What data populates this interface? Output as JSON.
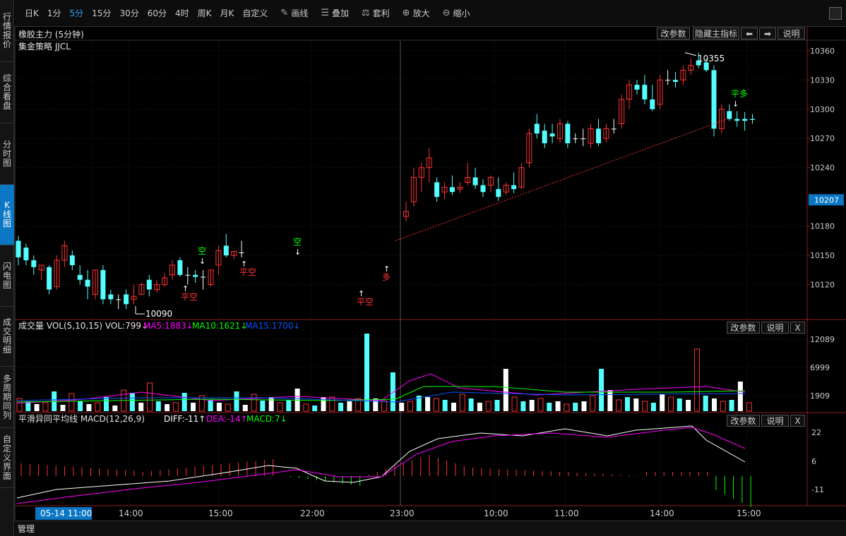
{
  "sidebar": {
    "items": [
      {
        "label": "行情报价",
        "active": false
      },
      {
        "label": "综合看盘",
        "active": false
      },
      {
        "label": "分时图",
        "active": false
      },
      {
        "label": "K线图",
        "active": true
      },
      {
        "label": "闪电图",
        "active": false
      },
      {
        "label": "成交明细",
        "active": false
      },
      {
        "label": "多周期同列",
        "active": false
      },
      {
        "label": "自定义界面",
        "active": false
      }
    ]
  },
  "toolbar": {
    "periods": [
      "日K",
      "1分",
      "5分",
      "15分",
      "30分",
      "60分",
      "4时",
      "周K",
      "月K",
      "自定义"
    ],
    "active_period": "5分",
    "tools": [
      {
        "label": "画线",
        "icon": "pencil-icon",
        "glyph": "✎"
      },
      {
        "label": "叠加",
        "icon": "stack-icon",
        "glyph": "☰"
      },
      {
        "label": "套利",
        "icon": "arbitrage-icon",
        "glyph": "⚖"
      },
      {
        "label": "放大",
        "icon": "zoom-in-icon",
        "glyph": "⊕"
      },
      {
        "label": "缩小",
        "icon": "zoom-out-icon",
        "glyph": "⊖"
      }
    ]
  },
  "main_panel": {
    "title": "橡胶主力 (5分钟)",
    "strategy": "集金策略 JJCL",
    "buttons": {
      "params": "改参数",
      "hide": "隐藏主指标",
      "left": "⬅",
      "right": "➡",
      "help": "说明"
    },
    "high_label": "10355",
    "low_label": "10090",
    "current_price": "10207",
    "y_ticks": [
      "10360",
      "10330",
      "10300",
      "10270",
      "10240",
      "10180",
      "10150",
      "10120"
    ]
  },
  "volume_panel": {
    "label_prefix": "成交量 VOL(5,10,15)",
    "vol": "VOL:799↓",
    "ma5": "MA5:1883↓",
    "ma10": "MA10:1621↓",
    "ma15": "MA15:1700↓",
    "buttons": {
      "params": "改参数",
      "help": "说明",
      "close": "X"
    },
    "y_ticks": [
      "12089",
      "6999",
      "1909"
    ]
  },
  "macd_panel": {
    "label_prefix": "平滑异同平均线 MACD(12,26,9)",
    "diff": "DIFF:-11↑",
    "dea": "DEA:-14↑",
    "macd": "MACD:7↓",
    "buttons": {
      "params": "改参数",
      "help": "说明",
      "close": "X"
    },
    "y_ticks": [
      "22",
      "6",
      "-11"
    ]
  },
  "x_axis": {
    "labels": [
      "05-14 11:00",
      "14:00",
      "15:00",
      "22:00",
      "23:00",
      "10:00",
      "11:00",
      "14:00",
      "15:00"
    ]
  },
  "bottom": {
    "manage": "管理"
  },
  "colors": {
    "up": "#ff3232",
    "down": "#54ffff",
    "flat": "#ffffff",
    "ma5": "#ff00ff",
    "ma10": "#00ff00",
    "ma15": "#0055ff",
    "diff": "#ffffff",
    "dea": "#ff00ff",
    "accent": "#0a76c4"
  },
  "chart_data": {
    "type": "candlestick",
    "y_range": [
      10085,
      10370
    ],
    "signals": [
      {
        "text": "空",
        "type": "sell",
        "color": "#00ff00",
        "candle": 16
      },
      {
        "text": "平空",
        "type": "close-short",
        "color": "#ff3232",
        "candle": 14
      },
      {
        "text": "平空",
        "type": "close-short",
        "color": "#ff3232",
        "candle": 20
      },
      {
        "text": "空",
        "type": "sell",
        "color": "#00ff00",
        "candle": 24
      },
      {
        "text": "平空",
        "type": "close-short",
        "color": "#ff3232",
        "candle": 31
      },
      {
        "text": "多",
        "type": "buy",
        "color": "#ff3232",
        "candle": 33
      },
      {
        "text": "平多",
        "type": "close-long",
        "color": "#00ff00",
        "candle": 63
      }
    ],
    "candles": [
      {
        "o": 10165,
        "h": 10170,
        "c": 10148,
        "l": 10140
      },
      {
        "o": 10158,
        "h": 10162,
        "c": 10145,
        "l": 10140
      },
      {
        "o": 10145,
        "h": 10150,
        "c": 10138,
        "l": 10130
      },
      {
        "o": 10135,
        "h": 10140,
        "c": 10140,
        "l": 10125
      },
      {
        "o": 10138,
        "h": 10140,
        "c": 10115,
        "l": 10110
      },
      {
        "o": 10118,
        "h": 10150,
        "c": 10145,
        "l": 10115
      },
      {
        "o": 10145,
        "h": 10165,
        "c": 10160,
        "l": 10138
      },
      {
        "o": 10150,
        "h": 10155,
        "c": 10140,
        "l": 10135
      },
      {
        "o": 10130,
        "h": 10140,
        "c": 10125,
        "l": 10120
      },
      {
        "o": 10125,
        "h": 10135,
        "c": 10118,
        "l": 10105
      },
      {
        "o": 10110,
        "h": 10135,
        "c": 10135,
        "l": 10105
      },
      {
        "o": 10135,
        "h": 10140,
        "c": 10105,
        "l": 10100
      },
      {
        "o": 10110,
        "h": 10115,
        "c": 10105,
        "l": 10100
      },
      {
        "o": 10105,
        "h": 10110,
        "c": 10105,
        "l": 10095
      },
      {
        "o": 10110,
        "h": 10115,
        "c": 10100,
        "l": 10095
      },
      {
        "o": 10105,
        "h": 10120,
        "c": 10108,
        "l": 10100
      },
      {
        "o": 10110,
        "h": 10122,
        "c": 10120,
        "l": 10110
      },
      {
        "o": 10125,
        "h": 10130,
        "c": 10115,
        "l": 10108
      },
      {
        "o": 10115,
        "h": 10125,
        "c": 10120,
        "l": 10112
      },
      {
        "o": 10120,
        "h": 10132,
        "c": 10127,
        "l": 10118
      },
      {
        "o": 10130,
        "h": 10145,
        "c": 10140,
        "l": 10125
      },
      {
        "o": 10145,
        "h": 10148,
        "c": 10130,
        "l": 10128
      },
      {
        "o": 10130,
        "h": 10138,
        "c": 10130,
        "l": 10120
      },
      {
        "o": 10130,
        "h": 10135,
        "c": 10128,
        "l": 10122
      },
      {
        "o": 10128,
        "h": 10135,
        "c": 10128,
        "l": 10115
      },
      {
        "o": 10120,
        "h": 10135,
        "c": 10135,
        "l": 10118
      },
      {
        "o": 10140,
        "h": 10160,
        "c": 10155,
        "l": 10130
      },
      {
        "o": 10160,
        "h": 10172,
        "c": 10150,
        "l": 10148
      },
      {
        "o": 10150,
        "h": 10155,
        "c": 10154,
        "l": 10146
      },
      {
        "o": 10153,
        "h": 10165,
        "c": 10153,
        "l": 10148
      }
    ],
    "x_labels": [
      "05-14 11:00",
      "14:00",
      "15:00",
      "22:00",
      "23:00",
      "10:00",
      "11:00",
      "14:00",
      "15:00"
    ]
  }
}
